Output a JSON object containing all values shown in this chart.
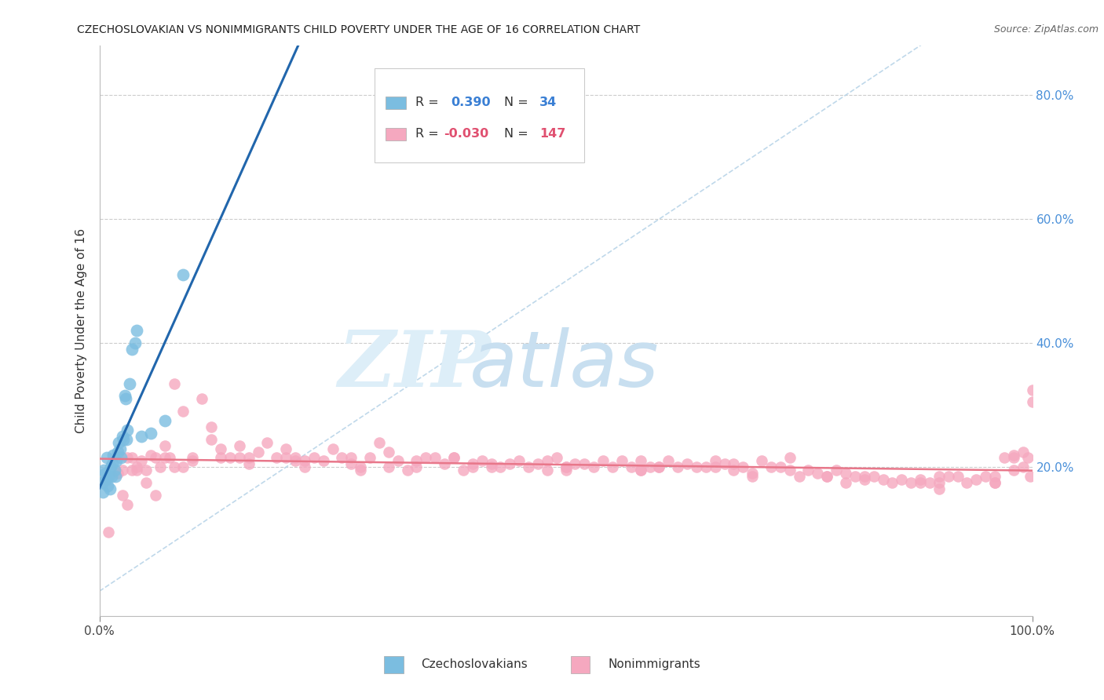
{
  "title": "CZECHOSLOVAKIAN VS NONIMMIGRANTS CHILD POVERTY UNDER THE AGE OF 16 CORRELATION CHART",
  "source": "Source: ZipAtlas.com",
  "ylabel": "Child Poverty Under the Age of 16",
  "ytick_labels": [
    "20.0%",
    "40.0%",
    "60.0%",
    "80.0%"
  ],
  "ytick_values": [
    0.2,
    0.4,
    0.6,
    0.8
  ],
  "xlim": [
    0.0,
    1.0
  ],
  "ylim": [
    -0.04,
    0.88
  ],
  "color_czech": "#7bbde0",
  "color_nonimm": "#f5a8bf",
  "line_color_czech": "#2166ac",
  "line_color_nonimm": "#e8778a",
  "diagonal_color": "#b8d4e8",
  "background_color": "#ffffff",
  "czech_x": [
    0.003,
    0.004,
    0.005,
    0.006,
    0.007,
    0.008,
    0.009,
    0.01,
    0.011,
    0.012,
    0.013,
    0.014,
    0.015,
    0.016,
    0.017,
    0.018,
    0.02,
    0.021,
    0.022,
    0.023,
    0.025,
    0.026,
    0.027,
    0.028,
    0.029,
    0.03,
    0.032,
    0.035,
    0.038,
    0.04,
    0.045,
    0.055,
    0.07,
    0.09
  ],
  "czech_y": [
    0.175,
    0.16,
    0.195,
    0.19,
    0.18,
    0.215,
    0.17,
    0.185,
    0.165,
    0.2,
    0.185,
    0.205,
    0.22,
    0.195,
    0.185,
    0.21,
    0.225,
    0.24,
    0.23,
    0.215,
    0.25,
    0.245,
    0.315,
    0.31,
    0.245,
    0.26,
    0.335,
    0.39,
    0.4,
    0.42,
    0.25,
    0.255,
    0.275,
    0.51
  ],
  "nonimm_x": [
    0.01,
    0.02,
    0.025,
    0.03,
    0.035,
    0.04,
    0.045,
    0.05,
    0.055,
    0.06,
    0.065,
    0.07,
    0.075,
    0.08,
    0.09,
    0.1,
    0.11,
    0.12,
    0.13,
    0.14,
    0.15,
    0.16,
    0.17,
    0.18,
    0.19,
    0.2,
    0.21,
    0.22,
    0.23,
    0.24,
    0.25,
    0.26,
    0.27,
    0.28,
    0.29,
    0.3,
    0.31,
    0.32,
    0.33,
    0.34,
    0.35,
    0.36,
    0.37,
    0.38,
    0.39,
    0.4,
    0.41,
    0.42,
    0.43,
    0.44,
    0.45,
    0.46,
    0.47,
    0.48,
    0.49,
    0.5,
    0.51,
    0.52,
    0.53,
    0.54,
    0.55,
    0.56,
    0.57,
    0.58,
    0.59,
    0.6,
    0.61,
    0.62,
    0.63,
    0.64,
    0.65,
    0.66,
    0.67,
    0.68,
    0.69,
    0.7,
    0.71,
    0.72,
    0.73,
    0.74,
    0.75,
    0.76,
    0.77,
    0.78,
    0.79,
    0.8,
    0.81,
    0.82,
    0.83,
    0.84,
    0.85,
    0.86,
    0.87,
    0.88,
    0.89,
    0.9,
    0.91,
    0.92,
    0.93,
    0.94,
    0.95,
    0.96,
    0.97,
    0.98,
    0.99,
    1.0,
    0.025,
    0.035,
    0.05,
    0.07,
    0.09,
    0.12,
    0.16,
    0.21,
    0.27,
    0.34,
    0.42,
    0.5,
    0.58,
    0.66,
    0.74,
    0.82,
    0.9,
    0.96,
    0.98,
    0.995,
    0.03,
    0.06,
    0.1,
    0.15,
    0.22,
    0.31,
    0.4,
    0.5,
    0.6,
    0.7,
    0.8,
    0.9,
    0.96,
    0.99,
    0.998,
    1.0,
    0.04,
    0.08,
    0.13,
    0.2,
    0.28,
    0.38,
    0.48,
    0.58,
    0.68,
    0.78,
    0.88,
    0.98
  ],
  "nonimm_y": [
    0.095,
    0.19,
    0.155,
    0.215,
    0.195,
    0.195,
    0.21,
    0.195,
    0.22,
    0.215,
    0.2,
    0.215,
    0.215,
    0.2,
    0.2,
    0.215,
    0.31,
    0.245,
    0.23,
    0.215,
    0.235,
    0.205,
    0.225,
    0.24,
    0.215,
    0.23,
    0.21,
    0.2,
    0.215,
    0.21,
    0.23,
    0.215,
    0.215,
    0.2,
    0.215,
    0.24,
    0.225,
    0.21,
    0.195,
    0.2,
    0.215,
    0.215,
    0.205,
    0.215,
    0.195,
    0.205,
    0.21,
    0.2,
    0.2,
    0.205,
    0.21,
    0.2,
    0.205,
    0.21,
    0.215,
    0.2,
    0.205,
    0.205,
    0.2,
    0.21,
    0.2,
    0.21,
    0.2,
    0.21,
    0.2,
    0.2,
    0.21,
    0.2,
    0.205,
    0.2,
    0.2,
    0.2,
    0.205,
    0.205,
    0.2,
    0.19,
    0.21,
    0.2,
    0.2,
    0.195,
    0.185,
    0.195,
    0.19,
    0.185,
    0.195,
    0.19,
    0.185,
    0.18,
    0.185,
    0.18,
    0.175,
    0.18,
    0.175,
    0.18,
    0.175,
    0.175,
    0.185,
    0.185,
    0.175,
    0.18,
    0.185,
    0.185,
    0.215,
    0.22,
    0.225,
    0.325,
    0.195,
    0.215,
    0.175,
    0.235,
    0.29,
    0.265,
    0.215,
    0.215,
    0.205,
    0.21,
    0.205,
    0.195,
    0.195,
    0.21,
    0.215,
    0.185,
    0.185,
    0.175,
    0.195,
    0.215,
    0.14,
    0.155,
    0.21,
    0.215,
    0.21,
    0.2,
    0.2,
    0.2,
    0.2,
    0.185,
    0.175,
    0.165,
    0.175,
    0.2,
    0.185,
    0.305,
    0.2,
    0.335,
    0.215,
    0.215,
    0.195,
    0.215,
    0.195,
    0.195,
    0.195,
    0.185,
    0.175,
    0.215
  ]
}
